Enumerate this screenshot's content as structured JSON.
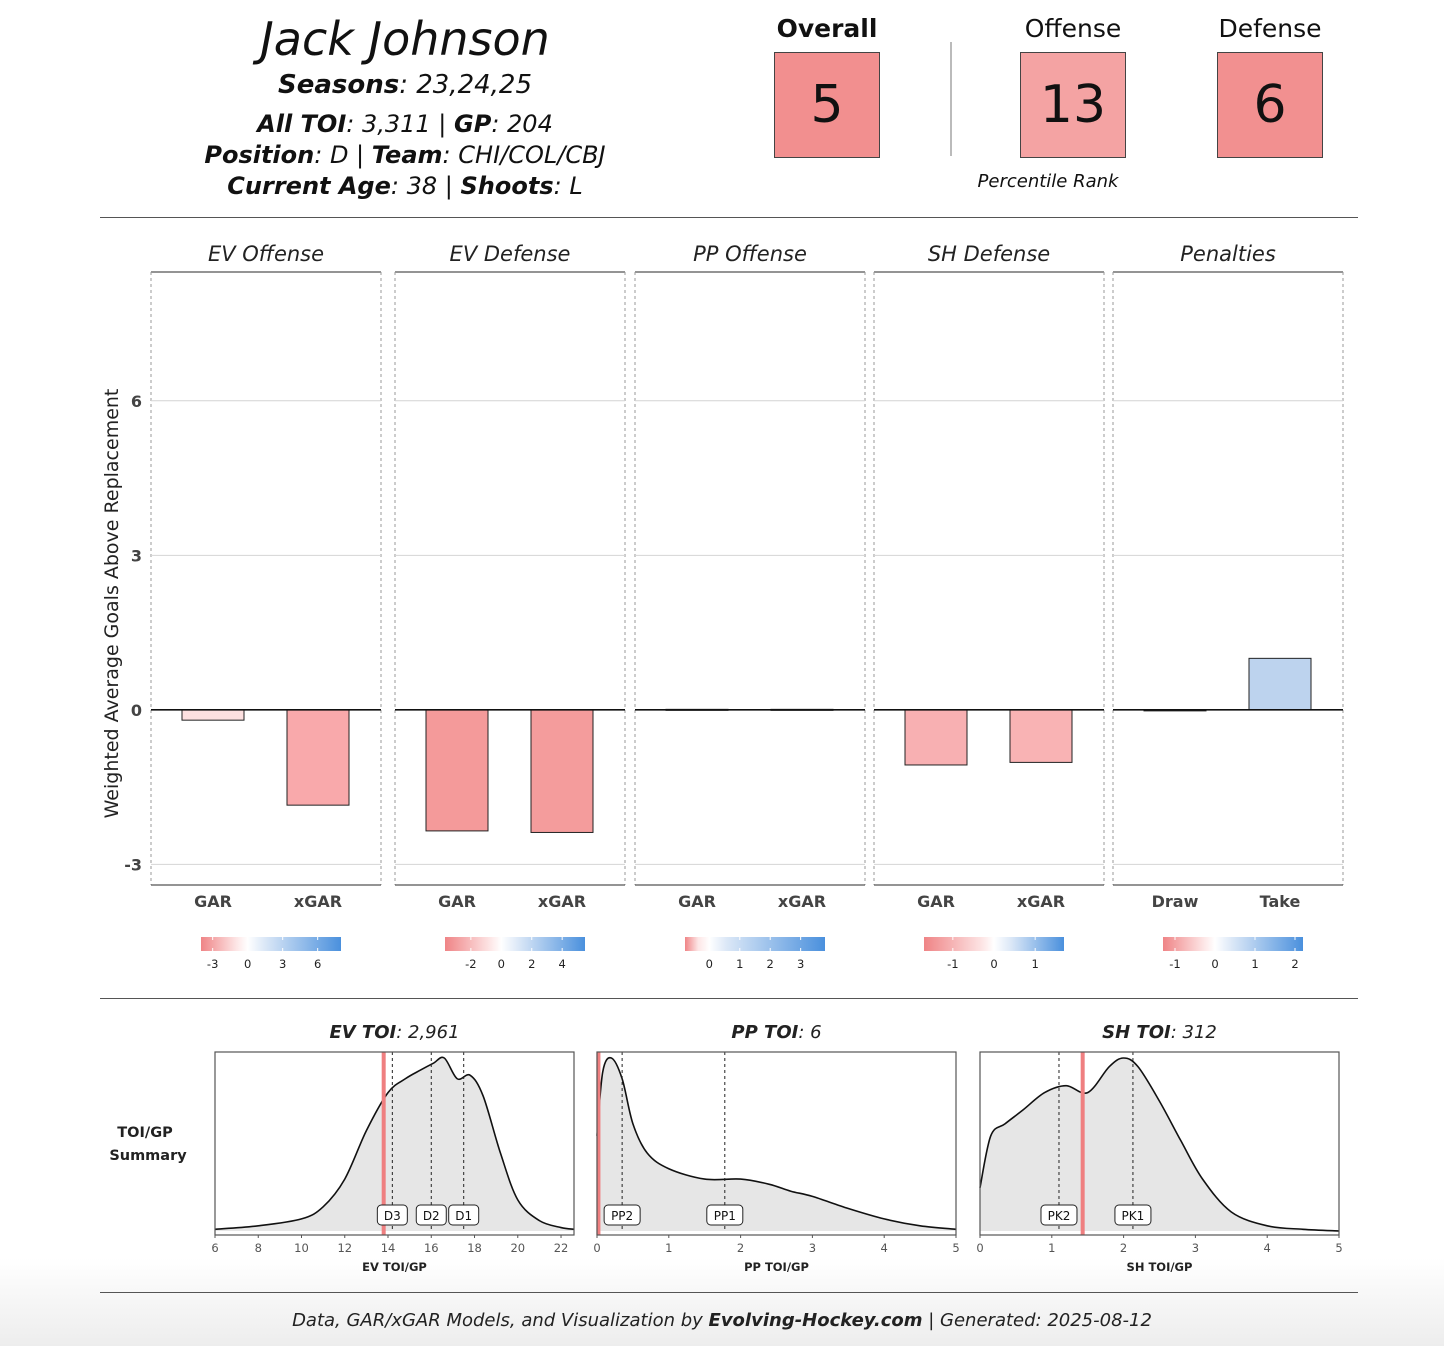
{
  "header": {
    "player_name": "Jack Johnson",
    "seasons_label": "Seasons",
    "seasons_value": ": 23,24,25",
    "toi_label": "All TOI",
    "toi_value": ": 3,311 | ",
    "gp_label": "GP",
    "gp_value": ": 204",
    "position_label": "Position",
    "position_value": ": D | ",
    "team_label": "Team",
    "team_value": ": CHI/COL/CBJ",
    "age_label": "Current Age",
    "age_value": ": 38 | ",
    "shoots_label": "Shoots",
    "shoots_value": ": L"
  },
  "ranks": {
    "overall_label": "Overall",
    "overall_value": "5",
    "offense_label": "Offense",
    "offense_value": "13",
    "defense_label": "Defense",
    "defense_value": "6",
    "caption": "Percentile Rank",
    "colors": {
      "overall": "#f28f8f",
      "offense": "#f4a3a3",
      "defense": "#f29090"
    }
  },
  "footer": {
    "prefix": "Data, GAR/xGAR Models, and Visualization by ",
    "site": "Evolving-Hockey.com",
    "suffix": " | Generated: 2025-08-12"
  },
  "chart_data": [
    {
      "type": "bar",
      "ylabel": "Weighted Average Goals Above Replacement",
      "ylim": [
        -3.4,
        8.5
      ],
      "yticks": [
        -3,
        0,
        3,
        6
      ],
      "panels": [
        {
          "title": "EV Offense",
          "categories": [
            "GAR",
            "xGAR"
          ],
          "values": [
            -0.2,
            -1.85
          ],
          "colors": [
            "#fde0e0",
            "#f9a9ab"
          ],
          "legend": {
            "ticks": [
              -3,
              0,
              3,
              6
            ],
            "min": -4,
            "max": 8
          }
        },
        {
          "title": "EV Defense",
          "categories": [
            "GAR",
            "xGAR"
          ],
          "values": [
            -2.35,
            -2.38
          ],
          "colors": [
            "#f49a9a",
            "#f49c9c"
          ],
          "legend": {
            "ticks": [
              -2,
              0,
              2,
              4
            ],
            "min": -3.7,
            "max": 5.5
          }
        },
        {
          "title": "PP Offense",
          "categories": [
            "GAR",
            "xGAR"
          ],
          "values": [
            0.01,
            0.01
          ],
          "colors": [
            "#ffffff",
            "#ffffff"
          ],
          "legend": {
            "ticks": [
              0,
              1,
              2,
              3
            ],
            "min": -0.8,
            "max": 3.8
          }
        },
        {
          "title": "SH Defense",
          "categories": [
            "GAR",
            "xGAR"
          ],
          "values": [
            -1.07,
            -1.02
          ],
          "colors": [
            "#f8b0b2",
            "#f9b3b4"
          ],
          "legend": {
            "ticks": [
              -1,
              0,
              1
            ],
            "min": -1.7,
            "max": 1.7
          }
        },
        {
          "title": "Penalties",
          "categories": [
            "Draw",
            "Take"
          ],
          "values": [
            -0.02,
            1.0
          ],
          "colors": [
            "#ffffff",
            "#bdd3ee"
          ],
          "legend": {
            "ticks": [
              -1,
              0,
              1,
              2
            ],
            "min": -1.3,
            "max": 2.2
          }
        }
      ]
    },
    {
      "type": "area",
      "row_label_1": "TOI/GP",
      "row_label_2": "Summary",
      "panels": [
        {
          "title_bold": "EV TOI",
          "title_rest": ": 2,961",
          "xlabel": "EV TOI/GP",
          "xlim": [
            6,
            22.6
          ],
          "xticks": [
            6,
            8,
            10,
            12,
            14,
            16,
            18,
            20,
            22
          ],
          "player_value": 13.8,
          "markers": [
            {
              "label": "D3",
              "x": 14.2
            },
            {
              "label": "D2",
              "x": 16.0
            },
            {
              "label": "D1",
              "x": 17.5
            }
          ],
          "density": {
            "x": [
              6,
              8,
              10,
              11,
              12,
              13,
              14,
              14.8,
              15.5,
              16.1,
              16.6,
              17.2,
              17.8,
              18.4,
              19.2,
              20,
              21,
              22,
              22.6
            ],
            "y": [
              0.01,
              0.03,
              0.07,
              0.14,
              0.3,
              0.58,
              0.8,
              0.88,
              0.93,
              0.97,
              1.0,
              0.88,
              0.9,
              0.78,
              0.45,
              0.18,
              0.06,
              0.02,
              0.01
            ]
          }
        },
        {
          "title_bold": "PP TOI",
          "title_rest": ": 6",
          "xlabel": "PP TOI/GP",
          "xlim": [
            0,
            5
          ],
          "xticks": [
            0,
            1,
            2,
            3,
            4,
            5
          ],
          "player_value": 0.02,
          "markers": [
            {
              "label": "PP2",
              "x": 0.35
            },
            {
              "label": "PP1",
              "x": 1.78
            }
          ],
          "density": {
            "x": [
              0,
              0.08,
              0.2,
              0.35,
              0.5,
              0.7,
              1.0,
              1.5,
              2.0,
              2.4,
              2.7,
              3.0,
              3.5,
              4.0,
              4.5,
              5.0
            ],
            "y": [
              0.55,
              0.92,
              1.0,
              0.88,
              0.62,
              0.45,
              0.36,
              0.3,
              0.3,
              0.27,
              0.23,
              0.2,
              0.13,
              0.07,
              0.03,
              0.01
            ]
          }
        },
        {
          "title_bold": "SH TOI",
          "title_rest": ": 312",
          "xlabel": "SH TOI/GP",
          "xlim": [
            0,
            5
          ],
          "xticks": [
            0,
            1,
            2,
            3,
            4,
            5
          ],
          "player_value": 1.43,
          "markers": [
            {
              "label": "PK2",
              "x": 1.1
            },
            {
              "label": "PK1",
              "x": 2.13
            }
          ],
          "density": {
            "x": [
              0,
              0.15,
              0.35,
              0.6,
              0.9,
              1.2,
              1.5,
              1.8,
              2.0,
              2.2,
              2.5,
              2.8,
              3.1,
              3.5,
              4.0,
              4.5,
              5.0
            ],
            "y": [
              0.25,
              0.55,
              0.62,
              0.7,
              0.8,
              0.84,
              0.8,
              0.95,
              1.0,
              0.95,
              0.75,
              0.52,
              0.3,
              0.11,
              0.03,
              0.01,
              0.0
            ]
          }
        }
      ]
    }
  ]
}
